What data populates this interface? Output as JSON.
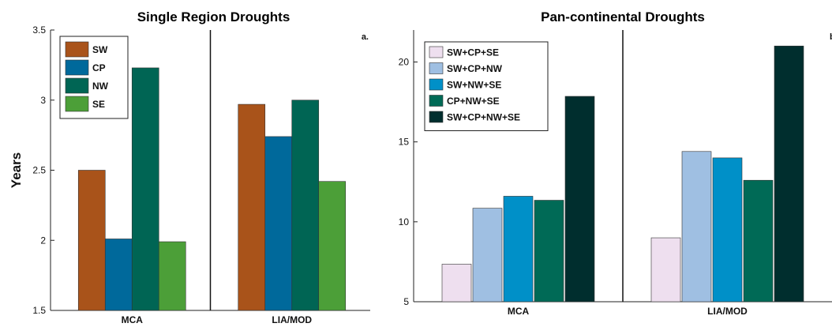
{
  "chart_data": [
    {
      "type": "bar",
      "title": "Single Region Droughts",
      "panel_label": "a.",
      "xlabel": "",
      "ylabel": "Years",
      "ylim": [
        1.5,
        3.5
      ],
      "yticks": [
        1.5,
        2,
        2.5,
        3,
        3.5
      ],
      "categories": [
        "MCA",
        "LIA/MOD"
      ],
      "legend_position": "top-left",
      "grid": false,
      "series": [
        {
          "name": "SW",
          "color": "#A9531A",
          "values": [
            2.5,
            2.97
          ]
        },
        {
          "name": "CP",
          "color": "#00699B",
          "values": [
            2.01,
            2.74
          ]
        },
        {
          "name": "NW",
          "color": "#006554",
          "values": [
            3.23,
            3.0
          ]
        },
        {
          "name": "SE",
          "color": "#4C9F38",
          "values": [
            1.99,
            2.42
          ]
        }
      ]
    },
    {
      "type": "bar",
      "title": "Pan-continental Droughts",
      "panel_label": "b.",
      "xlabel": "",
      "ylabel": "",
      "ylim": [
        5,
        22
      ],
      "yticks": [
        5,
        10,
        15,
        20
      ],
      "categories": [
        "MCA",
        "LIA/MOD"
      ],
      "legend_position": "top-left",
      "grid": false,
      "series": [
        {
          "name": "SW+CP+SE",
          "color": "#EEDFEF",
          "values": [
            7.35,
            9.0
          ]
        },
        {
          "name": "SW+CP+NW",
          "color": "#9FBFE2",
          "values": [
            10.85,
            14.4
          ]
        },
        {
          "name": "SW+NW+SE",
          "color": "#0090C8",
          "values": [
            11.6,
            14.0
          ]
        },
        {
          "name": "CP+NW+SE",
          "color": "#006A56",
          "values": [
            11.35,
            12.6
          ]
        },
        {
          "name": "SW+CP+NW+SE",
          "color": "#002E2E",
          "values": [
            17.85,
            21.0
          ]
        }
      ]
    }
  ]
}
